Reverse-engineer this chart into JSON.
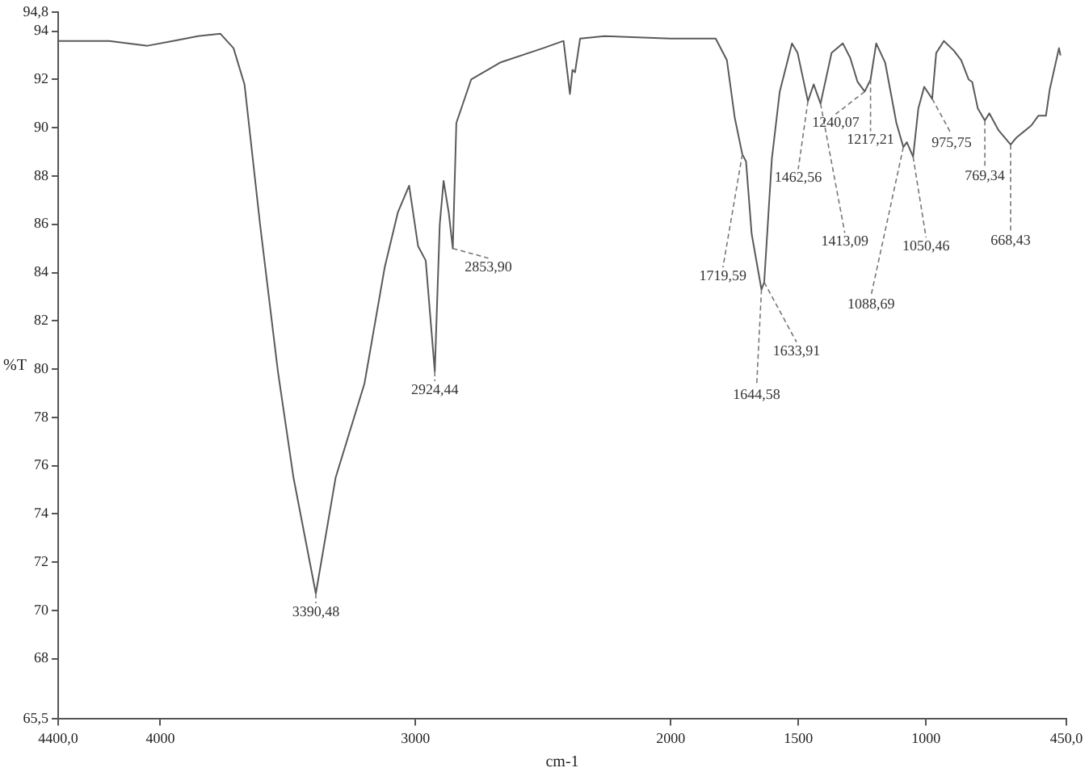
{
  "chart_data": {
    "type": "line",
    "xlabel": "cm-1",
    "ylabel": "%T",
    "xlim": [
      4400,
      450
    ],
    "xticks": [
      {
        "value": 4400,
        "label": "4400,0"
      },
      4000,
      3000,
      2000,
      1500,
      1000,
      {
        "value": 450,
        "label": "450,0"
      }
    ],
    "ylim": [
      65.5,
      94.8
    ],
    "yticks": [
      {
        "value": 65.5,
        "label": "65,5"
      },
      68,
      70,
      72,
      74,
      76,
      78,
      80,
      82,
      84,
      86,
      88,
      90,
      92,
      94,
      {
        "value": 94.8,
        "label": "94,8"
      }
    ],
    "grid": false,
    "legend": false,
    "marker": "none",
    "line_style": "solid",
    "x": [
      4400,
      4200,
      4050,
      3950,
      3852,
      3765,
      3713,
      3670,
      3609,
      3539,
      3478,
      3390.48,
      3313,
      3200,
      3121,
      3069,
      3025,
      2990,
      2960,
      2924.44,
      2905,
      2890,
      2870,
      2853.9,
      2840,
      2782,
      2669,
      2500,
      2420,
      2395,
      2385,
      2375,
      2355,
      2260,
      2000,
      1824,
      1780,
      1749,
      1719.59,
      1705,
      1683,
      1644.58,
      1633.91,
      1604,
      1573,
      1525,
      1503,
      1462.56,
      1440,
      1413.09,
      1370,
      1326,
      1297,
      1268,
      1240.07,
      1217.21,
      1195,
      1160,
      1116,
      1088.69,
      1075,
      1050.46,
      1030,
      1007,
      975.75,
      960,
      930,
      891,
      862,
      833,
      819,
      797,
      769.34,
      752,
      716,
      668.43,
      645,
      587,
      560,
      530,
      515,
      479,
      473
    ],
    "series": [
      {
        "color": "#5a5a5a",
        "values": [
          93.6,
          93.6,
          93.4,
          93.6,
          93.8,
          93.9,
          93.3,
          91.8,
          86.0,
          79.9,
          75.5,
          70.7,
          75.5,
          79.4,
          84.2,
          86.5,
          87.6,
          85.1,
          84.5,
          79.9,
          86.0,
          87.8,
          86.5,
          85.0,
          90.2,
          92.0,
          92.7,
          93.3,
          93.6,
          91.4,
          92.4,
          92.3,
          93.7,
          93.8,
          93.7,
          93.7,
          92.8,
          90.4,
          88.9,
          88.6,
          85.6,
          83.3,
          83.6,
          88.7,
          91.5,
          93.5,
          93.1,
          91.1,
          91.8,
          91.0,
          93.1,
          93.5,
          92.9,
          91.9,
          91.5,
          92.0,
          93.5,
          92.7,
          90.2,
          89.2,
          89.4,
          88.8,
          90.8,
          91.7,
          91.2,
          93.1,
          93.6,
          93.2,
          92.8,
          92.0,
          91.9,
          90.8,
          90.3,
          90.6,
          89.9,
          89.3,
          89.6,
          90.1,
          90.5,
          90.5,
          91.6,
          93.3,
          93.0
        ]
      }
    ],
    "annotations": [
      {
        "text": "3390,48",
        "x": 3390.48,
        "y": 70.7
      },
      {
        "text": "2924,44",
        "x": 2924.44,
        "y": 79.9
      },
      {
        "text": "2853,90",
        "x": 2853.9,
        "y": 85.0
      },
      {
        "text": "1719,59",
        "x": 1719.59,
        "y": 88.9
      },
      {
        "text": "1644,58",
        "x": 1644.58,
        "y": 83.3
      },
      {
        "text": "1633,91",
        "x": 1633.91,
        "y": 83.6
      },
      {
        "text": "1462,56",
        "x": 1462.56,
        "y": 91.1
      },
      {
        "text": "1413,09",
        "x": 1413.09,
        "y": 91.0
      },
      {
        "text": "1240,07",
        "x": 1240.07,
        "y": 91.5
      },
      {
        "text": "1217,21",
        "x": 1217.21,
        "y": 92.0
      },
      {
        "text": "1088,69",
        "x": 1088.69,
        "y": 89.2
      },
      {
        "text": "1050,46",
        "x": 1050.46,
        "y": 88.8
      },
      {
        "text": "975,75",
        "x": 975.75,
        "y": 91.2
      },
      {
        "text": "769,34",
        "x": 769.34,
        "y": 90.3
      },
      {
        "text": "668,43",
        "x": 668.43,
        "y": 89.3
      }
    ]
  }
}
